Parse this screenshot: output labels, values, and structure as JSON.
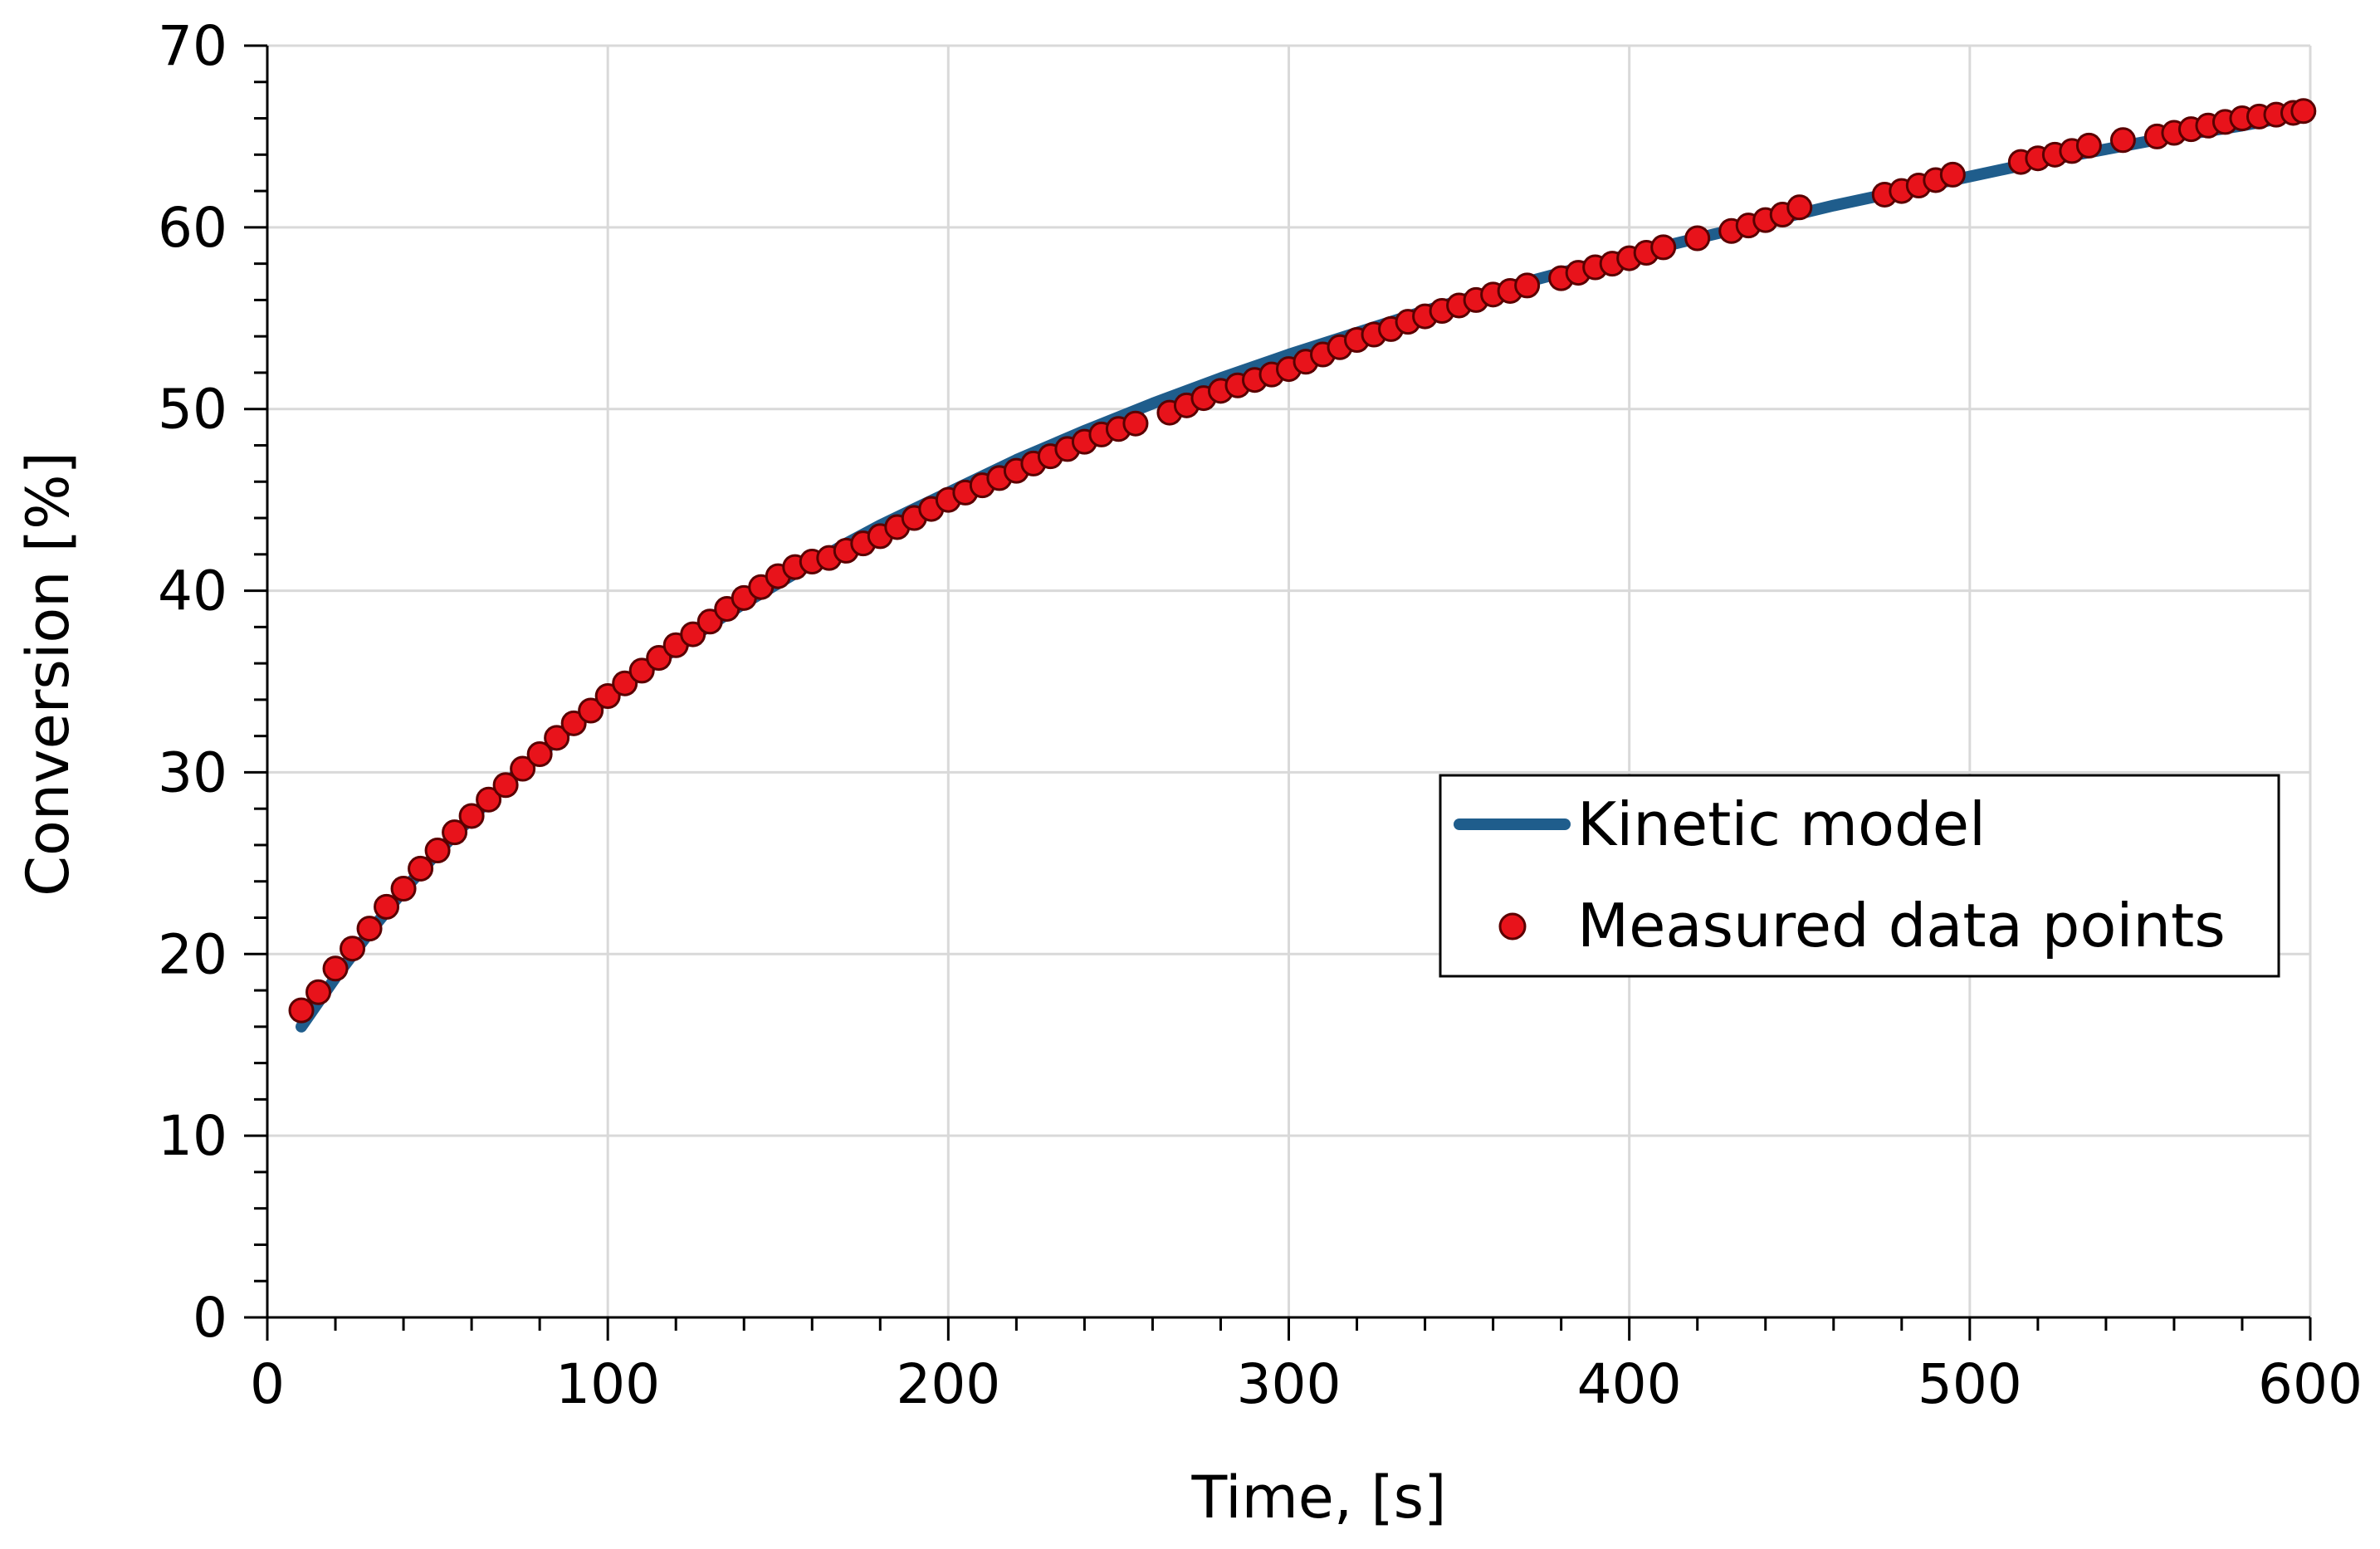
{
  "chart_data": {
    "type": "scatter",
    "title": "",
    "xlabel": "Time, [s]",
    "ylabel": "Conversion [%]",
    "xlim": [
      0,
      600
    ],
    "ylim": [
      0,
      70
    ],
    "x_major_ticks": [
      0,
      100,
      200,
      300,
      400,
      500,
      600
    ],
    "x_tick_labels": [
      "0",
      "100",
      "200",
      "300",
      "400",
      "500",
      "600"
    ],
    "x_minor_step": 20,
    "y_major_ticks": [
      0,
      10,
      20,
      30,
      40,
      50,
      60,
      70
    ],
    "y_tick_labels": [
      "0",
      "10",
      "20",
      "30",
      "40",
      "50",
      "60",
      "70"
    ],
    "y_minor_step": 2,
    "grid": true,
    "legend_position": "center-right",
    "series": [
      {
        "name": "Kinetic model",
        "kind": "line",
        "color": "#1F5D8C",
        "x": [
          10,
          20,
          30,
          40,
          50,
          60,
          70,
          80,
          90,
          100,
          110,
          120,
          130,
          140,
          150,
          160,
          170,
          180,
          190,
          200,
          220,
          240,
          260,
          280,
          300,
          320,
          340,
          360,
          380,
          400,
          420,
          440,
          460,
          480,
          500,
          520,
          540,
          560,
          580,
          600
        ],
        "y": [
          16.0,
          18.7,
          21.2,
          23.5,
          25.6,
          27.5,
          29.4,
          31.0,
          32.6,
          34.1,
          35.5,
          36.8,
          38.1,
          39.3,
          40.4,
          41.5,
          42.6,
          43.6,
          44.5,
          45.4,
          47.2,
          48.8,
          50.3,
          51.7,
          53.0,
          54.2,
          55.4,
          56.5,
          57.5,
          58.5,
          59.4,
          60.3,
          61.2,
          62.0,
          62.8,
          63.6,
          64.3,
          65.0,
          65.6,
          66.3
        ]
      },
      {
        "name": "Measured data points",
        "kind": "scatter",
        "color": "#E8131B",
        "error_bar": 0.5,
        "x": [
          10,
          15,
          20,
          25,
          30,
          35,
          40,
          45,
          50,
          55,
          60,
          65,
          70,
          75,
          80,
          85,
          90,
          95,
          100,
          105,
          110,
          115,
          120,
          125,
          130,
          135,
          140,
          145,
          150,
          155,
          160,
          165,
          170,
          175,
          180,
          185,
          190,
          195,
          200,
          205,
          210,
          215,
          220,
          225,
          230,
          235,
          240,
          245,
          250,
          255,
          265,
          270,
          275,
          280,
          285,
          290,
          295,
          300,
          305,
          310,
          315,
          320,
          325,
          330,
          335,
          340,
          345,
          350,
          355,
          360,
          365,
          370,
          380,
          385,
          390,
          395,
          400,
          405,
          410,
          420,
          430,
          435,
          440,
          445,
          450,
          475,
          480,
          485,
          490,
          495,
          515,
          520,
          525,
          530,
          535,
          545,
          555,
          560,
          565,
          570,
          575,
          580,
          585,
          590,
          595,
          598
        ],
        "y": [
          16.9,
          17.9,
          19.2,
          20.3,
          21.4,
          22.6,
          23.6,
          24.7,
          25.7,
          26.7,
          27.6,
          28.5,
          29.3,
          30.2,
          31.0,
          31.9,
          32.7,
          33.4,
          34.2,
          34.9,
          35.6,
          36.3,
          37.0,
          37.6,
          38.3,
          39.0,
          39.6,
          40.2,
          40.8,
          41.3,
          41.6,
          41.8,
          42.2,
          42.6,
          43.0,
          43.5,
          44.0,
          44.5,
          45.0,
          45.4,
          45.8,
          46.2,
          46.6,
          47.0,
          47.4,
          47.8,
          48.2,
          48.6,
          48.9,
          49.2,
          49.8,
          50.2,
          50.6,
          51.0,
          51.3,
          51.6,
          51.9,
          52.2,
          52.6,
          53.0,
          53.4,
          53.8,
          54.1,
          54.4,
          54.8,
          55.1,
          55.4,
          55.7,
          56.0,
          56.3,
          56.5,
          56.8,
          57.2,
          57.5,
          57.8,
          58.0,
          58.3,
          58.6,
          58.9,
          59.4,
          59.8,
          60.1,
          60.4,
          60.7,
          61.1,
          61.8,
          62.0,
          62.3,
          62.6,
          62.9,
          63.6,
          63.8,
          64.0,
          64.2,
          64.5,
          64.8,
          65.0,
          65.2,
          65.4,
          65.6,
          65.8,
          66.0,
          66.1,
          66.2,
          66.3,
          66.4
        ]
      }
    ]
  }
}
